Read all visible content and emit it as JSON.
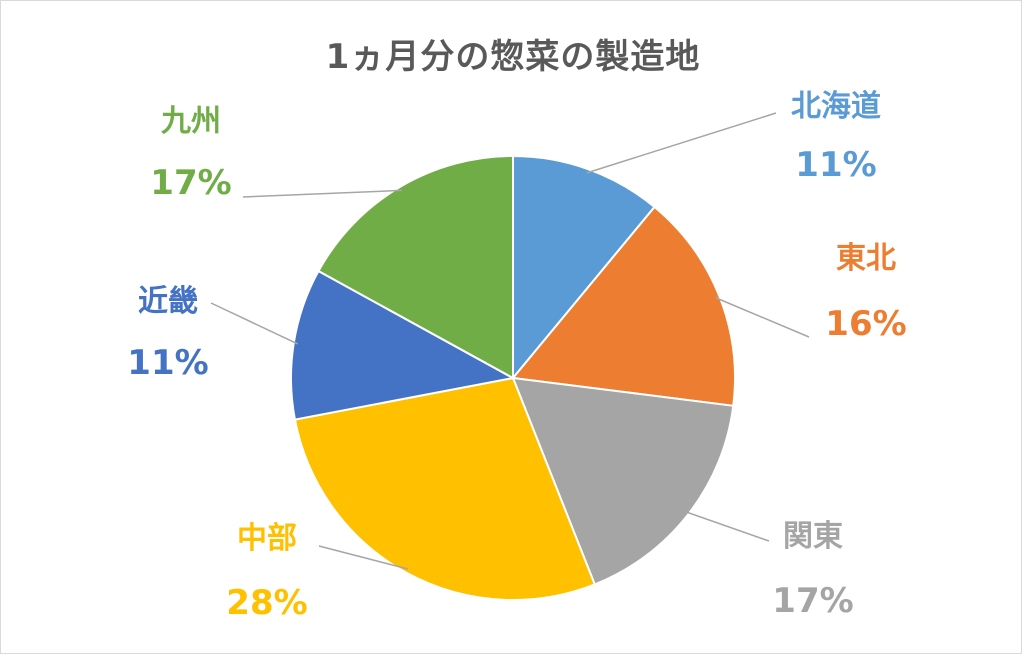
{
  "chart_data": {
    "type": "pie",
    "title": "1ヵ月分の惣菜の製造地",
    "categories": [
      "北海道",
      "東北",
      "関東",
      "中部",
      "近畿",
      "九州"
    ],
    "values": [
      11,
      16,
      17,
      28,
      11,
      17
    ],
    "labels": [
      "11%",
      "16%",
      "17%",
      "28%",
      "11%",
      "17%"
    ],
    "colors": [
      "#5b9bd5",
      "#ed7d31",
      "#a5a5a5",
      "#ffc000",
      "#4472c4",
      "#70ad47"
    ],
    "start_angle": "12 o'clock",
    "direction": "clockwise",
    "legend": "none"
  }
}
